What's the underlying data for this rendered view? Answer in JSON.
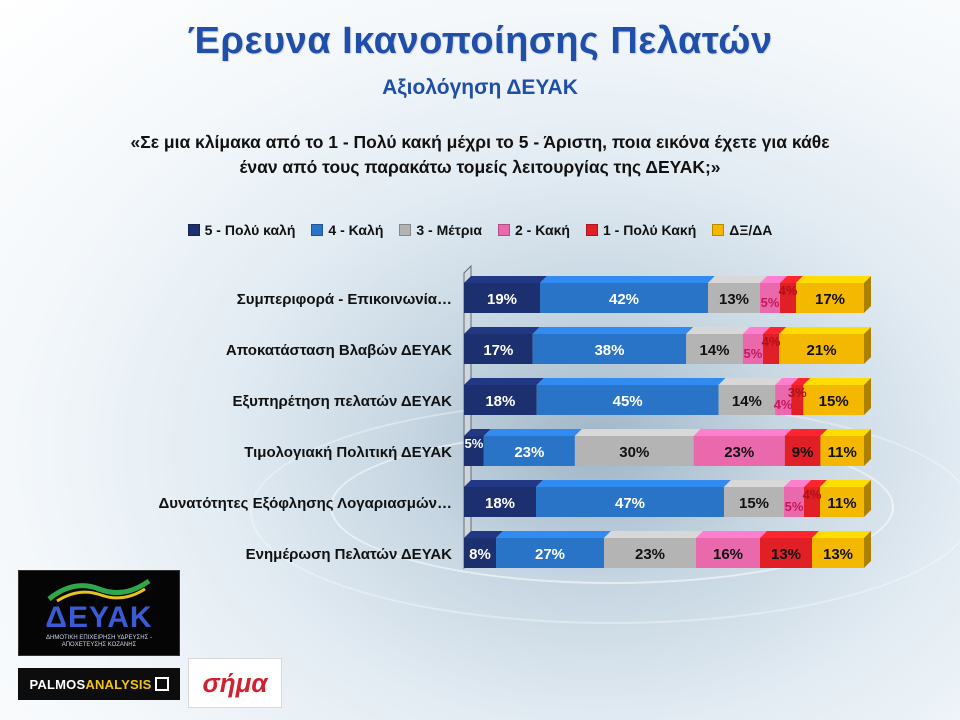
{
  "title": "Έρευνα Ικανοποίησης Πελατών",
  "subtitle": "Αξιολόγηση ΔΕΥΑΚ",
  "question": "«Σε μια κλίμακα από το 1 - Πολύ κακή μέχρι το 5 - Άριστη, ποια εικόνα έχετε για κάθε έναν από τους παρακάτω τομείς λειτουργίας της ΔΕΥΑΚ;»",
  "logos": {
    "deyak": "ΔΕΥΑΚ",
    "deyak_tagline": "ΔΗΜΟΤΙΚΗ ΕΠΙΧΕΙΡΗΣΗ ΥΔΡΕΥΣΗΣ - ΑΠΟΧΕΤΕΥΣΗΣ ΚΟΖΑΝΗΣ",
    "palmos_a": "PALMOS",
    "palmos_b": "ANALYSIS",
    "sima": "σήμα"
  },
  "chart_data": {
    "type": "bar",
    "orientation": "horizontal",
    "stacked": true,
    "categories": [
      "Συμπεριφορά - Επικοινωνία…",
      "Αποκατάσταση Βλαβών ΔΕΥΑΚ",
      "Εξυπηρέτηση πελατών ΔΕΥΑΚ",
      "Τιμολογιακή Πολιτική ΔΕΥΑΚ",
      "Δυνατότητες Εξόφλησης Λογαριασμών…",
      "Ενημέρωση Πελατών ΔΕΥΑΚ"
    ],
    "series": [
      {
        "name": "5 - Πολύ καλή",
        "color": "#1c2f6e",
        "values": [
          19,
          17,
          18,
          5,
          18,
          8
        ]
      },
      {
        "name": "4 - Καλή",
        "color": "#2a74c8",
        "values": [
          42,
          38,
          45,
          23,
          47,
          27
        ]
      },
      {
        "name": "3 - Μέτρια",
        "color": "#b4b4b4",
        "values": [
          13,
          14,
          14,
          30,
          15,
          23
        ]
      },
      {
        "name": "2 - Κακή",
        "color": "#ea69ad",
        "values": [
          5,
          5,
          4,
          23,
          5,
          16
        ]
      },
      {
        "name": "1 - Πολύ Κακή",
        "color": "#e01f26",
        "values": [
          4,
          4,
          3,
          9,
          4,
          13
        ]
      },
      {
        "name": "ΔΞ/ΔΑ",
        "color": "#f5b800",
        "values": [
          17,
          21,
          15,
          11,
          11,
          13
        ]
      }
    ],
    "value_suffix": "%",
    "legend_position": "top",
    "grid": false
  }
}
